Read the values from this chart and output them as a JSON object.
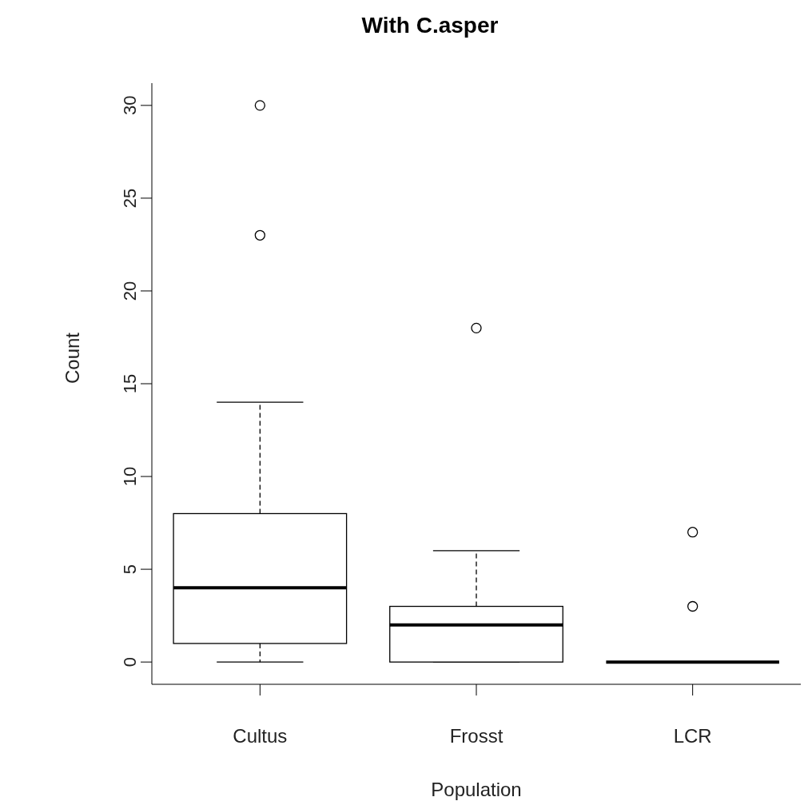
{
  "chart_data": {
    "type": "box",
    "title": "With C.asper",
    "xlabel": "Population",
    "ylabel": "Count",
    "categories": [
      "Cultus",
      "Frosst",
      "LCR"
    ],
    "boxes": [
      {
        "low": 0,
        "q1": 1,
        "median": 4,
        "q3": 8,
        "high": 14,
        "outliers": [
          23,
          30
        ]
      },
      {
        "low": 0,
        "q1": 0,
        "median": 2,
        "q3": 3,
        "high": 6,
        "outliers": [
          18
        ]
      },
      {
        "low": 0,
        "q1": 0,
        "median": 0,
        "q3": 0,
        "high": 0,
        "outliers": [
          3,
          7
        ]
      }
    ],
    "ylim": [
      -1.2,
      31.2
    ],
    "yticks": [
      0,
      5,
      10,
      15,
      20,
      25,
      30
    ]
  }
}
